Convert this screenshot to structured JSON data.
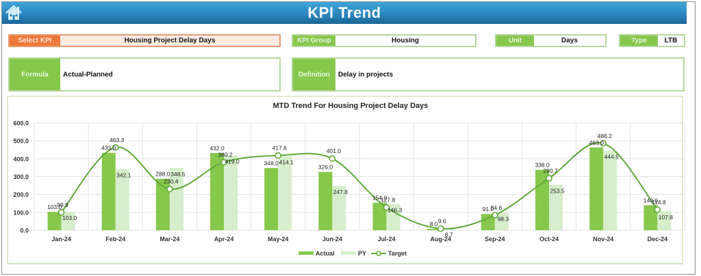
{
  "header": {
    "title": "KPI Trend",
    "home_icon": "home-icon"
  },
  "filters": {
    "select_kpi": {
      "label": "Select KPI",
      "value": "Housing Project Delay Days"
    },
    "kpi_group": {
      "label": "KPI Group",
      "value": "Housing"
    },
    "unit": {
      "label": "Unit",
      "value": "Days"
    },
    "type": {
      "label": "Type",
      "value": "LTB"
    }
  },
  "info": {
    "formula": {
      "label": "Formula",
      "value": "Actual-Planned"
    },
    "definition": {
      "label": "Definition",
      "value": "Delay in projects"
    }
  },
  "colors": {
    "header": "#2a86bf",
    "accent_green": "#86c84c",
    "py_green": "#d6eecb",
    "target_line": "#5fa83a",
    "select_orange": "#ec7a3a"
  },
  "chart_data": {
    "type": "bar",
    "title": "MTD Trend For Housing Project Delay Days",
    "xlabel": "",
    "ylabel": "",
    "ylim": [
      0,
      600
    ],
    "yticks": [
      "0.0",
      "100.0",
      "200.0",
      "300.0",
      "400.0",
      "500.0",
      "600.0"
    ],
    "grid": true,
    "legend_position": "bottom",
    "categories": [
      "Jan-24",
      "Feb-24",
      "Mar-24",
      "Apr-24",
      "May-24",
      "Jun-24",
      "Jul-24",
      "Aug-24",
      "Sep-24",
      "Oct-24",
      "Nov-24",
      "Dec-24"
    ],
    "series": [
      {
        "name": "Actual",
        "type": "bar",
        "values": [
          103.0,
          433.0,
          288.0,
          432.0,
          348.0,
          326.0,
          154.0,
          8.0,
          91.0,
          338.0,
          463.0,
          140.0
        ]
      },
      {
        "name": "PY",
        "type": "bar",
        "values": [
          103.0,
          342.1,
          348.5,
          419.0,
          414.1,
          247.8,
          146.3,
          8.7,
          98.3,
          253.5,
          444.5,
          107.8
        ]
      },
      {
        "name": "Target",
        "type": "line",
        "values": [
          99.9,
          463.3,
          230.4,
          380.2,
          417.6,
          401.0,
          127.8,
          9.6,
          84.6,
          290.7,
          486.2,
          114.8
        ]
      }
    ]
  }
}
